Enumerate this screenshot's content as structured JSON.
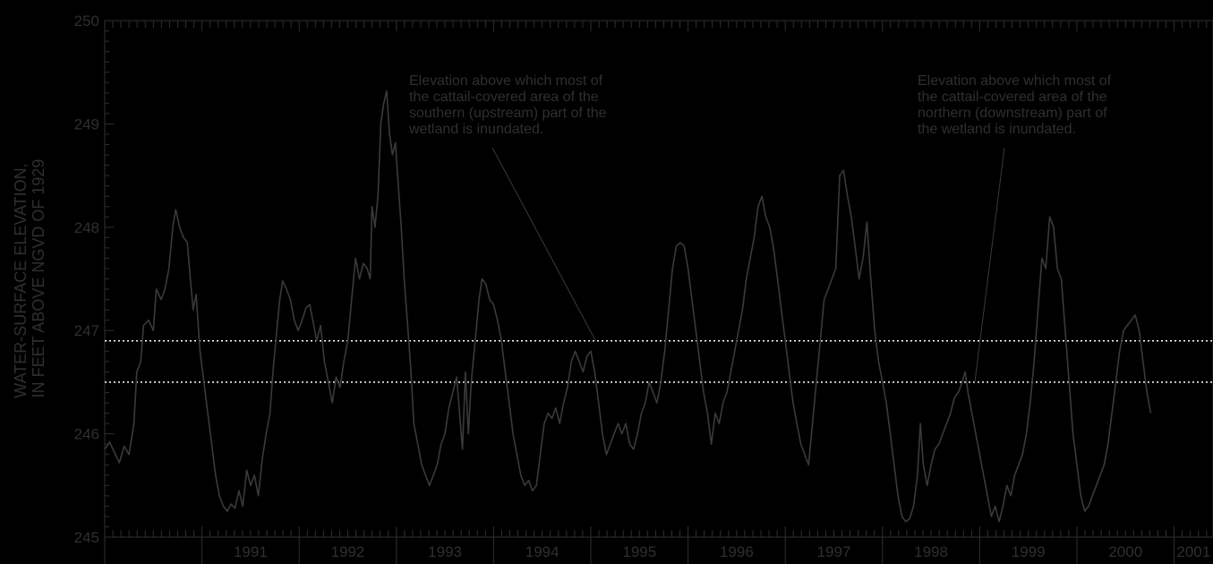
{
  "chart_data": {
    "type": "line",
    "title": "",
    "ylabel_lines": [
      "WATER-SURFACE ELEVATION,",
      "IN FEET ABOVE NGVD OF 1929"
    ],
    "ylim": [
      245,
      250
    ],
    "yticks": [
      "245",
      "246",
      "247",
      "248",
      "249",
      "250"
    ],
    "xlim": [
      1990.0,
      2001.4
    ],
    "xtick_years": [
      "1991",
      "1992",
      "1993",
      "1994",
      "1995",
      "1996",
      "1997",
      "1998",
      "1999",
      "2000",
      "2001"
    ],
    "grid": false,
    "reference_lines": [
      {
        "value": 246.9,
        "style": "dotted",
        "color": "#ffffff"
      },
      {
        "value": 246.5,
        "style": "dotted",
        "color": "#ffffff"
      }
    ],
    "annotations": [
      {
        "lines": [
          "Elevation above which most of",
          "the cattail-covered area of the",
          "southern (upstream) part of the",
          "wetland is inundated."
        ],
        "target": {
          "x": 1995.05,
          "y": 246.9
        }
      },
      {
        "lines": [
          "Elevation above which most of",
          "the cattail-covered area of the",
          "northern (downstream) part of",
          "the wetland is inundated."
        ],
        "target": {
          "x": 1998.95,
          "y": 246.5
        }
      }
    ],
    "series": [
      {
        "color": "#3a3a3a",
        "points": [
          [
            1990.0,
            245.85
          ],
          [
            1990.05,
            245.92
          ],
          [
            1990.1,
            245.82
          ],
          [
            1990.15,
            245.72
          ],
          [
            1990.2,
            245.88
          ],
          [
            1990.25,
            245.8
          ],
          [
            1990.3,
            246.1
          ],
          [
            1990.33,
            246.6
          ],
          [
            1990.37,
            246.7
          ],
          [
            1990.4,
            247.05
          ],
          [
            1990.45,
            247.1
          ],
          [
            1990.5,
            247.0
          ],
          [
            1990.53,
            247.4
          ],
          [
            1990.58,
            247.3
          ],
          [
            1990.62,
            247.4
          ],
          [
            1990.66,
            247.6
          ],
          [
            1990.7,
            248.0
          ],
          [
            1990.73,
            248.17
          ],
          [
            1990.77,
            248.0
          ],
          [
            1990.81,
            247.9
          ],
          [
            1990.85,
            247.85
          ],
          [
            1990.88,
            247.5
          ],
          [
            1990.91,
            247.2
          ],
          [
            1990.94,
            247.35
          ],
          [
            1990.98,
            246.8
          ],
          [
            1991.02,
            246.5
          ],
          [
            1991.06,
            246.2
          ],
          [
            1991.1,
            245.9
          ],
          [
            1991.14,
            245.6
          ],
          [
            1991.18,
            245.4
          ],
          [
            1991.22,
            245.3
          ],
          [
            1991.26,
            245.25
          ],
          [
            1991.3,
            245.32
          ],
          [
            1991.34,
            245.28
          ],
          [
            1991.38,
            245.45
          ],
          [
            1991.42,
            245.3
          ],
          [
            1991.46,
            245.65
          ],
          [
            1991.5,
            245.5
          ],
          [
            1991.54,
            245.6
          ],
          [
            1991.58,
            245.4
          ],
          [
            1991.62,
            245.75
          ],
          [
            1991.66,
            246.0
          ],
          [
            1991.7,
            246.2
          ],
          [
            1991.73,
            246.6
          ],
          [
            1991.76,
            246.9
          ],
          [
            1991.8,
            247.3
          ],
          [
            1991.83,
            247.48
          ],
          [
            1991.87,
            247.4
          ],
          [
            1991.91,
            247.3
          ],
          [
            1991.95,
            247.1
          ],
          [
            1991.99,
            247.0
          ],
          [
            1992.03,
            247.1
          ],
          [
            1992.07,
            247.22
          ],
          [
            1992.11,
            247.25
          ],
          [
            1992.15,
            247.05
          ],
          [
            1992.18,
            246.9
          ],
          [
            1992.22,
            247.05
          ],
          [
            1992.26,
            246.7
          ],
          [
            1992.3,
            246.5
          ],
          [
            1992.34,
            246.3
          ],
          [
            1992.38,
            246.55
          ],
          [
            1992.42,
            246.45
          ],
          [
            1992.46,
            246.7
          ],
          [
            1992.5,
            246.9
          ],
          [
            1992.54,
            247.3
          ],
          [
            1992.58,
            247.7
          ],
          [
            1992.62,
            247.5
          ],
          [
            1992.66,
            247.65
          ],
          [
            1992.7,
            247.6
          ],
          [
            1992.73,
            247.5
          ],
          [
            1992.75,
            248.2
          ],
          [
            1992.78,
            248.0
          ],
          [
            1992.81,
            248.3
          ],
          [
            1992.84,
            249.0
          ],
          [
            1992.87,
            249.2
          ],
          [
            1992.9,
            249.32
          ],
          [
            1992.93,
            248.9
          ],
          [
            1992.96,
            248.7
          ],
          [
            1992.99,
            248.82
          ],
          [
            1993.02,
            248.4
          ],
          [
            1993.05,
            248.0
          ],
          [
            1993.08,
            247.5
          ],
          [
            1993.12,
            247.0
          ],
          [
            1993.15,
            246.6
          ],
          [
            1993.18,
            246.1
          ],
          [
            1993.22,
            245.9
          ],
          [
            1993.26,
            245.7
          ],
          [
            1993.3,
            245.6
          ],
          [
            1993.34,
            245.5
          ],
          [
            1993.38,
            245.6
          ],
          [
            1993.42,
            245.7
          ],
          [
            1993.46,
            245.9
          ],
          [
            1993.5,
            246.0
          ],
          [
            1993.54,
            246.25
          ],
          [
            1993.58,
            246.4
          ],
          [
            1993.62,
            246.55
          ],
          [
            1993.65,
            246.2
          ],
          [
            1993.68,
            245.85
          ],
          [
            1993.71,
            246.6
          ],
          [
            1993.74,
            246.0
          ],
          [
            1993.77,
            246.5
          ],
          [
            1993.81,
            246.9
          ],
          [
            1993.85,
            247.3
          ],
          [
            1993.88,
            247.5
          ],
          [
            1993.92,
            247.45
          ],
          [
            1993.96,
            247.3
          ],
          [
            1994.0,
            247.25
          ],
          [
            1994.04,
            247.1
          ],
          [
            1994.08,
            246.9
          ],
          [
            1994.12,
            246.6
          ],
          [
            1994.16,
            246.3
          ],
          [
            1994.2,
            246.0
          ],
          [
            1994.24,
            245.8
          ],
          [
            1994.28,
            245.6
          ],
          [
            1994.32,
            245.5
          ],
          [
            1994.36,
            245.55
          ],
          [
            1994.4,
            245.45
          ],
          [
            1994.44,
            245.5
          ],
          [
            1994.48,
            245.8
          ],
          [
            1994.52,
            246.1
          ],
          [
            1994.56,
            246.2
          ],
          [
            1994.6,
            246.15
          ],
          [
            1994.64,
            246.25
          ],
          [
            1994.68,
            246.1
          ],
          [
            1994.72,
            246.3
          ],
          [
            1994.76,
            246.45
          ],
          [
            1994.8,
            246.7
          ],
          [
            1994.84,
            246.8
          ],
          [
            1994.88,
            246.7
          ],
          [
            1994.92,
            246.6
          ],
          [
            1994.96,
            246.75
          ],
          [
            1995.0,
            246.8
          ],
          [
            1995.04,
            246.6
          ],
          [
            1995.08,
            246.3
          ],
          [
            1995.12,
            246.0
          ],
          [
            1995.16,
            245.8
          ],
          [
            1995.2,
            245.9
          ],
          [
            1995.24,
            246.0
          ],
          [
            1995.28,
            246.1
          ],
          [
            1995.32,
            246.0
          ],
          [
            1995.36,
            246.1
          ],
          [
            1995.4,
            245.9
          ],
          [
            1995.44,
            245.85
          ],
          [
            1995.48,
            246.0
          ],
          [
            1995.52,
            246.2
          ],
          [
            1995.56,
            246.3
          ],
          [
            1995.6,
            246.5
          ],
          [
            1995.64,
            246.4
          ],
          [
            1995.68,
            246.3
          ],
          [
            1995.72,
            246.5
          ],
          [
            1995.76,
            246.8
          ],
          [
            1995.8,
            247.2
          ],
          [
            1995.84,
            247.6
          ],
          [
            1995.88,
            247.82
          ],
          [
            1995.92,
            247.85
          ],
          [
            1995.96,
            247.82
          ],
          [
            1996.0,
            247.6
          ],
          [
            1996.04,
            247.3
          ],
          [
            1996.08,
            247.0
          ],
          [
            1996.12,
            246.7
          ],
          [
            1996.16,
            246.4
          ],
          [
            1996.2,
            246.2
          ],
          [
            1996.24,
            245.9
          ],
          [
            1996.28,
            246.2
          ],
          [
            1996.32,
            246.1
          ],
          [
            1996.36,
            246.3
          ],
          [
            1996.4,
            246.4
          ],
          [
            1996.44,
            246.6
          ],
          [
            1996.48,
            246.8
          ],
          [
            1996.52,
            247.0
          ],
          [
            1996.56,
            247.2
          ],
          [
            1996.6,
            247.5
          ],
          [
            1996.64,
            247.7
          ],
          [
            1996.68,
            247.9
          ],
          [
            1996.72,
            248.2
          ],
          [
            1996.76,
            248.3
          ],
          [
            1996.8,
            248.1
          ],
          [
            1996.84,
            248.0
          ],
          [
            1996.88,
            247.8
          ],
          [
            1996.92,
            247.5
          ],
          [
            1996.96,
            247.2
          ],
          [
            1997.0,
            246.9
          ],
          [
            1997.04,
            246.6
          ],
          [
            1997.08,
            246.3
          ],
          [
            1997.12,
            246.1
          ],
          [
            1997.16,
            245.9
          ],
          [
            1997.2,
            245.8
          ],
          [
            1997.24,
            245.7
          ],
          [
            1997.28,
            246.1
          ],
          [
            1997.32,
            246.5
          ],
          [
            1997.36,
            246.9
          ],
          [
            1997.4,
            247.3
          ],
          [
            1997.44,
            247.4
          ],
          [
            1997.48,
            247.5
          ],
          [
            1997.52,
            247.6
          ],
          [
            1997.56,
            248.5
          ],
          [
            1997.6,
            248.55
          ],
          [
            1997.64,
            248.3
          ],
          [
            1997.68,
            248.1
          ],
          [
            1997.72,
            247.8
          ],
          [
            1997.76,
            247.5
          ],
          [
            1997.8,
            247.7
          ],
          [
            1997.84,
            248.05
          ],
          [
            1997.88,
            247.5
          ],
          [
            1997.92,
            247.0
          ],
          [
            1997.96,
            246.7
          ],
          [
            1998.0,
            246.5
          ],
          [
            1998.04,
            246.3
          ],
          [
            1998.08,
            246.0
          ],
          [
            1998.12,
            245.7
          ],
          [
            1998.16,
            245.4
          ],
          [
            1998.2,
            245.2
          ],
          [
            1998.24,
            245.15
          ],
          [
            1998.28,
            245.18
          ],
          [
            1998.32,
            245.3
          ],
          [
            1998.36,
            245.6
          ],
          [
            1998.39,
            246.1
          ],
          [
            1998.42,
            245.7
          ],
          [
            1998.46,
            245.5
          ],
          [
            1998.5,
            245.7
          ],
          [
            1998.54,
            245.85
          ],
          [
            1998.58,
            245.9
          ],
          [
            1998.62,
            246.0
          ],
          [
            1998.66,
            246.1
          ],
          [
            1998.7,
            246.2
          ],
          [
            1998.74,
            246.35
          ],
          [
            1998.78,
            246.4
          ],
          [
            1998.82,
            246.5
          ],
          [
            1998.85,
            246.6
          ],
          [
            1998.88,
            246.4
          ],
          [
            1998.92,
            246.2
          ],
          [
            1998.96,
            246.0
          ],
          [
            1999.0,
            245.8
          ],
          [
            1999.04,
            245.6
          ],
          [
            1999.08,
            245.4
          ],
          [
            1999.12,
            245.2
          ],
          [
            1999.16,
            245.3
          ],
          [
            1999.2,
            245.15
          ],
          [
            1999.24,
            245.3
          ],
          [
            1999.28,
            245.5
          ],
          [
            1999.32,
            245.4
          ],
          [
            1999.36,
            245.6
          ],
          [
            1999.4,
            245.7
          ],
          [
            1999.44,
            245.8
          ],
          [
            1999.48,
            246.0
          ],
          [
            1999.52,
            246.3
          ],
          [
            1999.56,
            246.7
          ],
          [
            1999.6,
            247.2
          ],
          [
            1999.64,
            247.7
          ],
          [
            1999.68,
            247.6
          ],
          [
            1999.72,
            248.1
          ],
          [
            1999.76,
            248.0
          ],
          [
            1999.8,
            247.6
          ],
          [
            1999.84,
            247.5
          ],
          [
            1999.88,
            247.0
          ],
          [
            1999.92,
            246.5
          ],
          [
            1999.96,
            246.0
          ],
          [
            2000.0,
            245.7
          ],
          [
            2000.04,
            245.4
          ],
          [
            2000.08,
            245.25
          ],
          [
            2000.12,
            245.3
          ],
          [
            2000.16,
            245.4
          ],
          [
            2000.2,
            245.5
          ],
          [
            2000.24,
            245.6
          ],
          [
            2000.28,
            245.7
          ],
          [
            2000.32,
            245.9
          ],
          [
            2000.36,
            246.2
          ],
          [
            2000.4,
            246.5
          ],
          [
            2000.44,
            246.8
          ],
          [
            2000.48,
            247.0
          ],
          [
            2000.52,
            247.05
          ],
          [
            2000.56,
            247.1
          ],
          [
            2000.6,
            247.15
          ],
          [
            2000.64,
            247.0
          ],
          [
            2000.68,
            246.7
          ],
          [
            2000.72,
            246.4
          ],
          [
            2000.76,
            246.2
          ]
        ]
      }
    ]
  }
}
